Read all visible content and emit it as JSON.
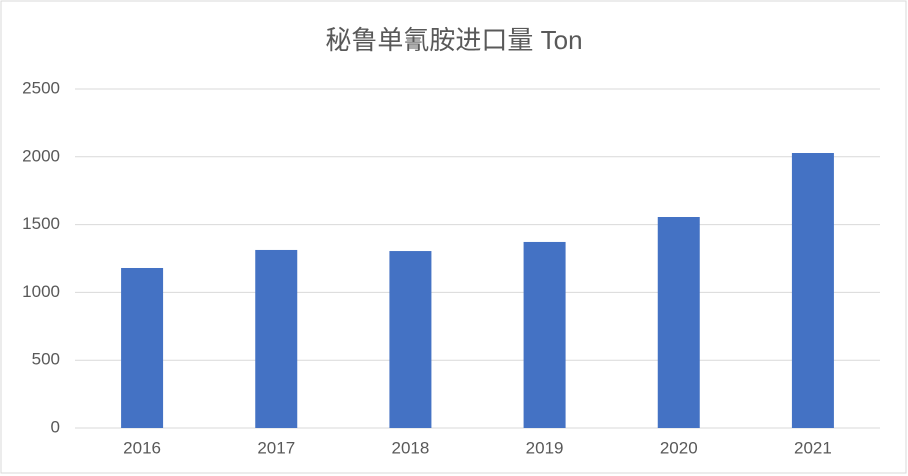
{
  "chart_data": {
    "type": "bar",
    "title": "秘鲁单氰胺进口量 Ton",
    "categories": [
      "2016",
      "2017",
      "2018",
      "2019",
      "2020",
      "2021"
    ],
    "values": [
      1180,
      1313,
      1305,
      1372,
      1556,
      2028
    ],
    "color": "#4472c4",
    "ylim": [
      0,
      2500
    ],
    "yticks": [
      0,
      500,
      1000,
      1500,
      2000,
      2500
    ],
    "grid": true
  }
}
